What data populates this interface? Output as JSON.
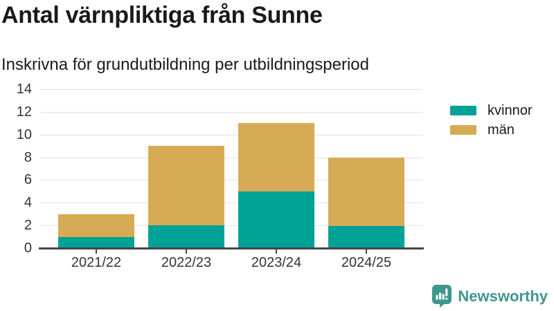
{
  "header": {
    "title": "Antal värnpliktiga från Sunne",
    "subtitle": "Inskrivna för grundutbildning per utbildningsperiod"
  },
  "chart_data": {
    "type": "bar",
    "stacked": true,
    "title": "Antal värnpliktiga från Sunne",
    "subtitle": "Inskrivna för grundutbildning per utbildningsperiod",
    "categories": [
      "2021/22",
      "2022/23",
      "2023/24",
      "2024/25"
    ],
    "series": [
      {
        "name": "kvinnor",
        "color": "#00a295",
        "values": [
          1,
          2,
          5,
          2
        ]
      },
      {
        "name": "män",
        "color": "#d7ab55",
        "values": [
          2,
          7,
          6,
          6
        ]
      }
    ],
    "totals": [
      3,
      9,
      11,
      8
    ],
    "xlabel": "",
    "ylabel": "",
    "ylim": [
      0,
      14
    ],
    "yticks": [
      0,
      2,
      4,
      6,
      8,
      10,
      12,
      14
    ],
    "grid": true,
    "legend_position": "top-right"
  },
  "footer": {
    "logo_text": "Newsworthy"
  },
  "colors": {
    "kvinnor": "#00a295",
    "man": "#d7ab55",
    "gridline": "#e2e2e2",
    "axis": "#454545",
    "text": "#1a1a1a",
    "axis_text": "#333333",
    "brand_teal": "#3e968c"
  }
}
